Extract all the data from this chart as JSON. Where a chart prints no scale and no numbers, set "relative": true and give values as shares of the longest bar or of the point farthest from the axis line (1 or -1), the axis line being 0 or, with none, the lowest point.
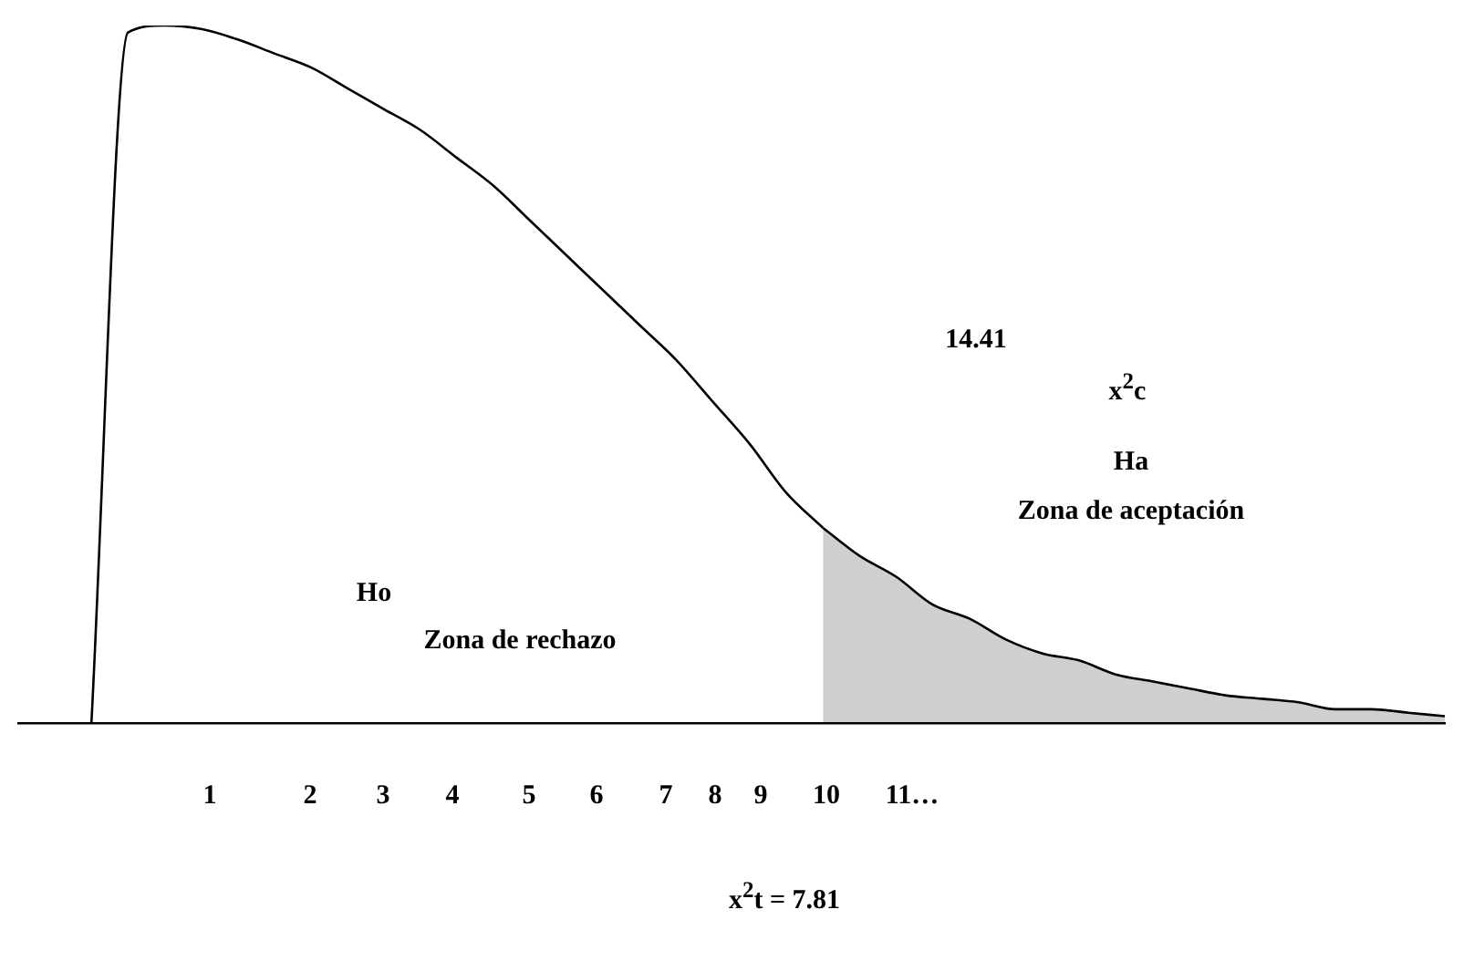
{
  "chart_data": {
    "type": "line",
    "relative": true,
    "categories": [
      null,
      null,
      null,
      null,
      null,
      null,
      null,
      null,
      null,
      null,
      null,
      null,
      null,
      null,
      null,
      null,
      null,
      null,
      null,
      null,
      null,
      null,
      null,
      null,
      null,
      null,
      null,
      null,
      null,
      null,
      null,
      null,
      null,
      null,
      null,
      null,
      null,
      null,
      null,
      null
    ],
    "series": [
      {
        "type": "line",
        "color": "#000000",
        "values": [
          null,
          null,
          0,
          0.99,
          1,
          0.995,
          0.98,
          0.96,
          0.94,
          0.91,
          0.88,
          0.85,
          0.81,
          0.77,
          0.72,
          0.67,
          0.62,
          0.57,
          0.52,
          0.46,
          0.4,
          0.33,
          0.28,
          null,
          null,
          null,
          null,
          null,
          null,
          null,
          null,
          null,
          null,
          null,
          null,
          null,
          null,
          null,
          null,
          null
        ]
      },
      {
        "type": "area",
        "color": "#000000",
        "values": [
          null,
          null,
          null,
          null,
          null,
          null,
          null,
          null,
          null,
          null,
          null,
          null,
          null,
          null,
          null,
          null,
          null,
          null,
          null,
          null,
          null,
          null,
          0.28,
          0.24,
          0.21,
          0.17,
          0.15,
          0.12,
          0.1,
          0.09,
          0.07,
          0.06,
          0.05,
          0.04,
          0.035,
          0.03,
          0.02,
          0.02,
          0.015,
          0.01
        ]
      }
    ],
    "annotations": [
      "14.41",
      "x$^{2}$c",
      "Ha",
      "Zona de aceptación",
      "Ho",
      "Zona de rechazo",
      "1",
      "2",
      "3",
      "4",
      "5",
      "6",
      "7",
      "8",
      "9",
      "10",
      "11…",
      "x$^{2}$t = 7.81"
    ]
  }
}
